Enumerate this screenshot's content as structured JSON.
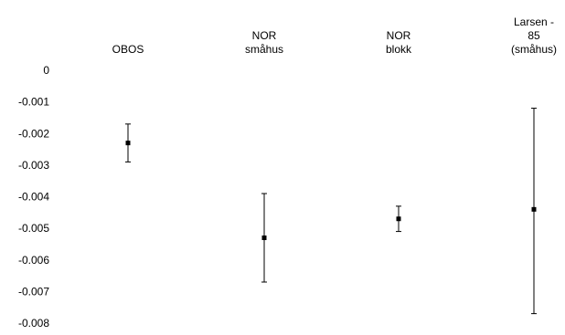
{
  "chart_data": {
    "type": "scatter",
    "subtype": "error-bar",
    "categories": [
      [
        "OBOS"
      ],
      [
        "NOR",
        "småhus"
      ],
      [
        "NOR",
        "blokk"
      ],
      [
        "Larsen -",
        "85",
        "(småhus)"
      ]
    ],
    "series": [
      {
        "values": [
          -0.0023,
          -0.0053,
          -0.0047,
          -0.0044
        ],
        "lower": [
          -0.0029,
          -0.0067,
          -0.0051,
          -0.0077
        ],
        "upper": [
          -0.0017,
          -0.0039,
          -0.0043,
          -0.0012
        ]
      }
    ],
    "y_ticks": [
      "0",
      "-0.001",
      "-0.002",
      "-0.003",
      "-0.004",
      "-0.005",
      "-0.006",
      "-0.007",
      "-0.008"
    ],
    "ylim": [
      -0.008,
      0
    ],
    "grid": false,
    "legend": "none",
    "colors": {
      "marker": "#000000",
      "errorbar": "#000000"
    }
  }
}
